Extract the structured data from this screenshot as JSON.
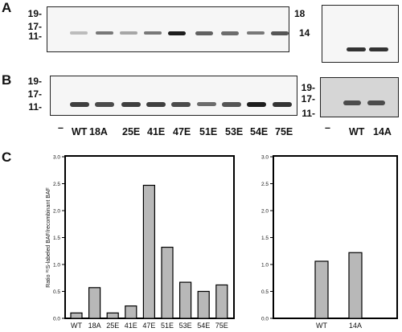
{
  "panels": {
    "a": "A",
    "b": "B",
    "c": "C"
  },
  "blot_a": {
    "left_mw": [
      "19-",
      "17-",
      "11-"
    ],
    "right_mw": [
      "18",
      "14"
    ],
    "left_lane_intensity": [
      0.25,
      0.55,
      0.35,
      0.55,
      0.95,
      0.65,
      0.6,
      0.55,
      0.7
    ],
    "right_lane_intensity": [
      0.85,
      0.85
    ]
  },
  "blot_b": {
    "left_mw": [
      "19-",
      "17-",
      "11-"
    ],
    "right_mw": [
      "19-",
      "17-",
      "11-"
    ],
    "left_lane_intensity": [
      0.8,
      0.75,
      0.8,
      0.8,
      0.75,
      0.6,
      0.7,
      0.95,
      0.85
    ],
    "right_lane_intensity": [
      0.7,
      0.7
    ],
    "lanes_left": [
      "–",
      "WT",
      "18A",
      "25E",
      "41E",
      "47E",
      "51E",
      "53E",
      "54E",
      "75E"
    ],
    "lanes_right": [
      "–",
      "WT",
      "14A"
    ]
  },
  "chart_data": [
    {
      "type": "bar",
      "ylabel": "Ratio ³⁵S-labeled BAF/recombinant BAF",
      "categories": [
        "WT",
        "18A",
        "25E",
        "41E",
        "47E",
        "51E",
        "53E",
        "54E",
        "75E"
      ],
      "values": [
        0.1,
        0.57,
        0.1,
        0.23,
        2.47,
        1.32,
        0.67,
        0.5,
        0.62
      ],
      "ylim": [
        0,
        3.0
      ],
      "yticks": [
        "0.0",
        "0.5",
        "1.0",
        "1.5",
        "2.0",
        "2.5",
        "3.0"
      ],
      "grid": false
    },
    {
      "type": "bar",
      "categories": [
        "WT",
        "14A"
      ],
      "values": [
        1.06,
        1.22
      ],
      "ylim": [
        0,
        3.0
      ],
      "yticks": [
        "0.0",
        "0.5",
        "1.0",
        "1.5",
        "2.0",
        "2.5",
        "3.0"
      ],
      "grid": false
    }
  ],
  "colors": {
    "bar_fill": "#b8b8b8",
    "band": "#111111"
  }
}
